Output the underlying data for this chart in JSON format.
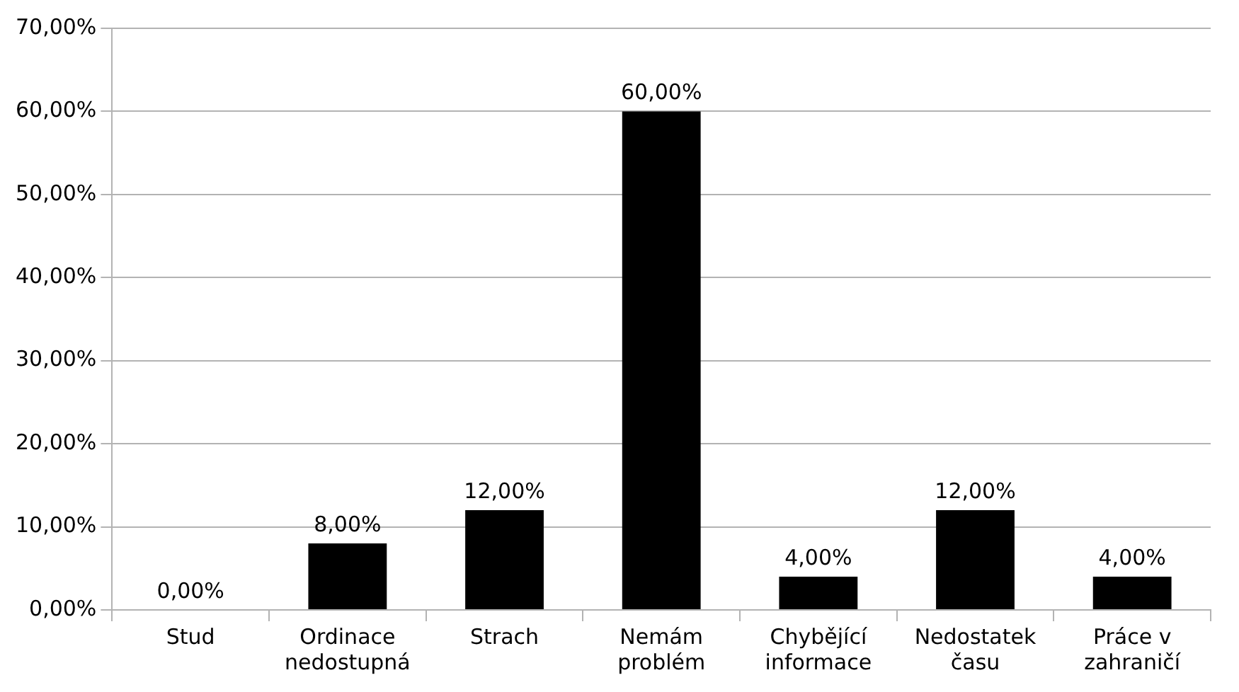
{
  "chart_data": {
    "type": "bar",
    "categories": [
      "Stud",
      "Ordinace nedostupná",
      "Strach",
      "Nemám problém",
      "Chybějící informace",
      "Nedostatek času",
      "Práce v zahraničí"
    ],
    "values": [
      0,
      8,
      12,
      60,
      4,
      12,
      4
    ],
    "value_labels": [
      "0,00%",
      "8,00%",
      "12,00%",
      "60,00%",
      "4,00%",
      "12,00%",
      "4,00%"
    ],
    "color": "#000000",
    "ylim": [
      0,
      70
    ],
    "yticks": [
      {
        "value": 0,
        "label": "0,00%"
      },
      {
        "value": 10,
        "label": "10,00%"
      },
      {
        "value": 20,
        "label": "20,00%"
      },
      {
        "value": 30,
        "label": "30,00%"
      },
      {
        "value": 40,
        "label": "40,00%"
      },
      {
        "value": 50,
        "label": "50,00%"
      },
      {
        "value": 60,
        "label": "60,00%"
      },
      {
        "value": 70,
        "label": "70,00%"
      }
    ],
    "grid": "y",
    "legend": false
  }
}
